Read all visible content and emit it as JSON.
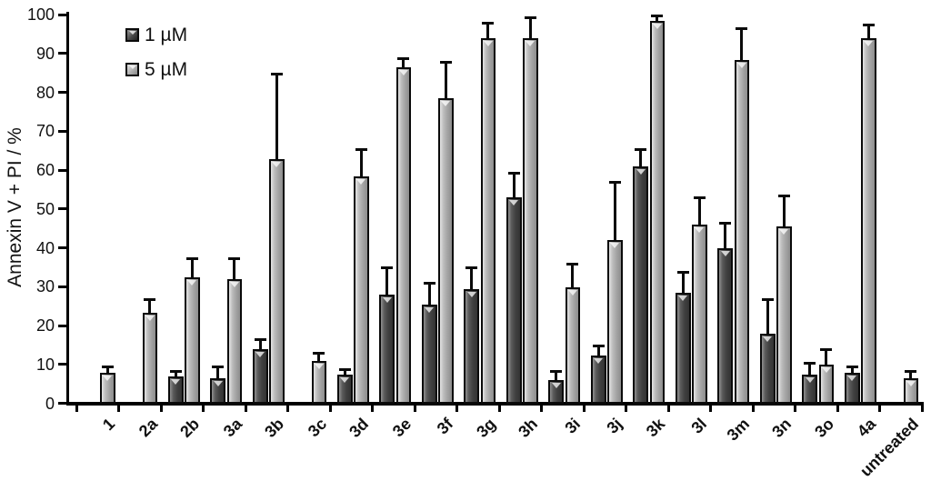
{
  "chart_data": {
    "type": "bar",
    "title": "",
    "xlabel": "",
    "ylabel": "Annexin V + PI / %",
    "ylim": [
      0,
      100
    ],
    "yticks": [
      0,
      10,
      20,
      30,
      40,
      50,
      60,
      70,
      80,
      90,
      100
    ],
    "grid": false,
    "legend_position": "top-left-inside",
    "error_bars": "upper-only",
    "categories": [
      "1",
      "2a",
      "2b",
      "3a",
      "3b",
      "3c",
      "3d",
      "3e",
      "3f",
      "3g",
      "3h",
      "3i",
      "3j",
      "3k",
      "3l",
      "3m",
      "3n",
      "3o",
      "4a",
      "untreated"
    ],
    "series": [
      {
        "name": "1 µM",
        "color": "#4a4a4a",
        "values": [
          null,
          null,
          7,
          6.5,
          14,
          null,
          7.5,
          28,
          25.5,
          29.5,
          53,
          6,
          12.5,
          61,
          28.5,
          40,
          18,
          7.5,
          8,
          null
        ],
        "errors": [
          null,
          null,
          1.5,
          3,
          2.5,
          null,
          1.5,
          7,
          5.5,
          5.5,
          6.5,
          2.5,
          2.5,
          4.5,
          5.5,
          6.5,
          9,
          3,
          1.5,
          null
        ]
      },
      {
        "name": "5 µM",
        "color": "#b0b0b0",
        "values": [
          8,
          23.5,
          32.5,
          32,
          63,
          11,
          58.5,
          86.5,
          78.5,
          94,
          94,
          30,
          42,
          98.5,
          46,
          88.5,
          45.5,
          10,
          94,
          6.5
        ],
        "errors": [
          1.5,
          3.5,
          5,
          5.5,
          22,
          2,
          7,
          2.5,
          9.5,
          4,
          5.5,
          6,
          15,
          1.5,
          7,
          8,
          8,
          4,
          3.5,
          2
        ]
      }
    ]
  },
  "colors": {
    "axis": "#000000",
    "background": "#ffffff",
    "series_dark": "#4a4a4a",
    "series_light": "#b0b0b0"
  },
  "legend": {
    "items": [
      {
        "label": "1 µM"
      },
      {
        "label": "5 µM"
      }
    ]
  }
}
